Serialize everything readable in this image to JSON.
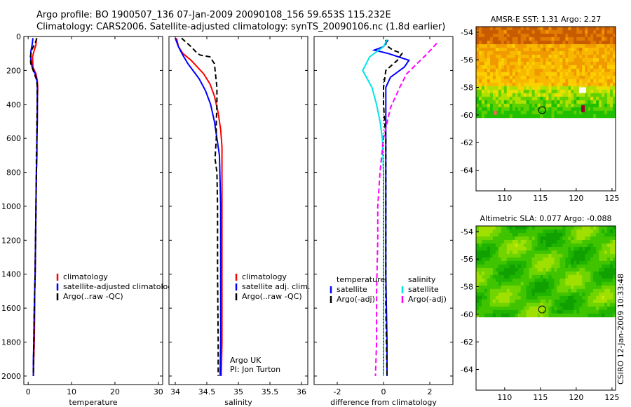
{
  "title_line1": "Argo profile: BO 1900507_136 07-Jan-2009 20090108_156 59.653S 115.232E",
  "title_line2": "Climatology: CARS2006. Satellite-adjusted climatology: synTS_20090106.nc (1.8d earlier)",
  "chart_data": [
    {
      "type": "line",
      "xlabel": "temperature",
      "ylabel": "",
      "xlim": [
        -1,
        31
      ],
      "ylim": [
        2050,
        0
      ],
      "xticks": [
        0,
        10,
        20,
        30
      ],
      "yticks": [
        0,
        200,
        400,
        600,
        800,
        1000,
        1200,
        1400,
        1600,
        1800,
        2000
      ],
      "legend": [
        {
          "label": "climatology",
          "color": "#ff0000"
        },
        {
          "label": "satellite-adjusted climatology",
          "color": "#0000ff"
        },
        {
          "label": "Argo(..raw -QC)",
          "color": "#000000"
        }
      ],
      "series": [
        {
          "key": "climatology",
          "color": "#ff0000",
          "style": "solid",
          "x": [
            1.9,
            1.8,
            1.4,
            1.0,
            1.1,
            1.8,
            2.1,
            2.2,
            2.1,
            2.1,
            2.0,
            2.0,
            1.9,
            1.8,
            1.7,
            1.6,
            1.5,
            1.5,
            1.4,
            1.3,
            1.2
          ],
          "y": [
            10,
            50,
            80,
            120,
            180,
            220,
            260,
            300,
            400,
            500,
            600,
            700,
            800,
            1000,
            1200,
            1400,
            1500,
            1600,
            1800,
            1900,
            2000
          ]
        },
        {
          "key": "satellite",
          "color": "#0000ff",
          "style": "solid",
          "x": [
            1.1,
            0.9,
            0.6,
            0.6,
            0.9,
            1.6,
            2.0,
            2.1,
            2.1,
            2.1,
            2.0,
            2.0,
            1.9,
            1.8,
            1.7,
            1.6,
            1.5,
            1.4,
            1.3,
            1.2,
            1.2
          ],
          "y": [
            10,
            50,
            90,
            130,
            180,
            220,
            260,
            300,
            400,
            500,
            600,
            700,
            800,
            1000,
            1200,
            1400,
            1500,
            1600,
            1800,
            1900,
            2000
          ]
        },
        {
          "key": "argo",
          "color": "#000000",
          "style": "dash",
          "x": [
            2.0,
            1.6,
            0.8,
            0.5,
            0.6,
            1.3,
            2.0,
            2.1,
            2.1,
            2.0,
            2.0,
            1.9,
            1.9,
            1.8,
            1.7,
            1.6,
            1.5,
            1.4,
            1.3,
            1.2
          ],
          "y": [
            10,
            40,
            80,
            120,
            160,
            210,
            260,
            300,
            400,
            500,
            600,
            700,
            800,
            1000,
            1200,
            1400,
            1500,
            1600,
            1800,
            2000
          ]
        }
      ]
    },
    {
      "type": "line",
      "xlabel": "salinity",
      "ylabel": "",
      "xlim": [
        33.9,
        36.1
      ],
      "ylim": [
        2050,
        0
      ],
      "xticks": [
        34,
        34.5,
        35,
        35.5,
        36
      ],
      "xticklabels": [
        "34",
        "34.5",
        "35",
        "35.5",
        "36"
      ],
      "legend": [
        {
          "label": "climatology",
          "color": "#ff0000"
        },
        {
          "label": "satellite adj. clim.",
          "color": "#0000ff"
        },
        {
          "label": "Argo(..raw -QC)",
          "color": "#000000"
        }
      ],
      "annotation": [
        "Argo UK",
        "PI: Jon Turton"
      ],
      "series": [
        {
          "key": "climatology",
          "color": "#ff0000",
          "style": "solid",
          "x": [
            34.02,
            34.05,
            34.12,
            34.25,
            34.35,
            34.45,
            34.55,
            34.62,
            34.68,
            34.72,
            34.74,
            34.74,
            34.74,
            34.74,
            34.74,
            34.73
          ],
          "y": [
            10,
            60,
            100,
            140,
            180,
            220,
            280,
            350,
            450,
            550,
            650,
            800,
            1000,
            1400,
            1800,
            2000
          ]
        },
        {
          "key": "satellite",
          "color": "#0000ff",
          "style": "solid",
          "x": [
            34.0,
            34.05,
            34.12,
            34.2,
            34.28,
            34.38,
            34.48,
            34.56,
            34.62,
            34.66,
            34.7,
            34.71,
            34.72,
            34.72,
            34.72,
            34.71
          ],
          "y": [
            10,
            60,
            110,
            160,
            200,
            250,
            320,
            400,
            500,
            600,
            700,
            850,
            1000,
            1400,
            1800,
            2000
          ]
        },
        {
          "key": "argo",
          "color": "#000000",
          "style": "dash",
          "x": [
            34.1,
            34.25,
            34.35,
            34.4,
            34.55,
            34.62,
            34.66,
            34.66,
            34.65,
            34.65,
            34.63,
            34.66,
            34.67,
            34.67,
            34.68,
            34.68
          ],
          "y": [
            10,
            60,
            100,
            110,
            120,
            160,
            300,
            400,
            500,
            600,
            720,
            800,
            1000,
            1400,
            1800,
            2000
          ]
        }
      ]
    },
    {
      "type": "line",
      "xlabel": "difference from climatology",
      "ylabel": "",
      "xlim": [
        -3.0,
        3.0
      ],
      "ylim": [
        2050,
        0
      ],
      "xticks": [
        -2,
        0,
        2
      ],
      "legend": [
        {
          "label": "temperature",
          "color": ""
        },
        {
          "label": "satellite",
          "color": "#0000ff"
        },
        {
          "label": "Argo(-adj)",
          "color": "#000000"
        },
        {
          "label": "salinity",
          "color": ""
        },
        {
          "label": "satellite",
          "color": "#00e5e5"
        },
        {
          "label": "Argo(-adj)",
          "color": "#ff00ff"
        }
      ],
      "series": [
        {
          "key": "temp_sat",
          "color": "#0000ff",
          "style": "solid",
          "x": [
            0.2,
            0.0,
            -0.4,
            0.2,
            1.1,
            0.9,
            0.3,
            0.1,
            0.1,
            0.1,
            0.1,
            0.1,
            0.15,
            0.15
          ],
          "y": [
            20,
            60,
            80,
            100,
            140,
            180,
            240,
            300,
            400,
            600,
            1000,
            1400,
            1800,
            2000
          ]
        },
        {
          "key": "temp_argo",
          "color": "#000000",
          "style": "dash",
          "x": [
            0.1,
            0.1,
            0.4,
            0.8,
            0.6,
            0.1,
            0.0,
            0.0,
            0.1,
            0.1,
            0.1,
            0.15
          ],
          "y": [
            20,
            50,
            80,
            100,
            140,
            200,
            300,
            400,
            600,
            1000,
            1600,
            2000
          ]
        },
        {
          "key": "sal_sat",
          "color": "#00e5e5",
          "style": "solid",
          "x": [
            0.15,
            0.0,
            -0.6,
            -0.9,
            -0.5,
            -0.3,
            -0.15,
            -0.05,
            0.0,
            0.0,
            0.0,
            0.0
          ],
          "y": [
            20,
            60,
            120,
            200,
            300,
            400,
            500,
            600,
            800,
            1000,
            1500,
            2000
          ]
        },
        {
          "key": "sal_argo",
          "color": "#ff00ff",
          "style": "dash",
          "x": [
            2.3,
            1.9,
            1.0,
            0.7,
            0.3,
            0.0,
            -0.15,
            -0.25,
            -0.25,
            -0.3,
            -0.3,
            -0.35
          ],
          "y": [
            40,
            100,
            220,
            300,
            420,
            600,
            800,
            1000,
            1200,
            1500,
            1800,
            2000
          ]
        },
        {
          "key": "zero",
          "color": "#000000",
          "style": "dot",
          "x": [
            0.0,
            0.0,
            0.0,
            0.0
          ],
          "y": [
            250,
            900,
            1500,
            2000
          ]
        }
      ]
    },
    {
      "type": "heatmap",
      "title": "AMSR-E SST: 1.31 Argo: 2.27",
      "xlim": [
        106,
        125.5
      ],
      "ylim": [
        -65.5,
        -53.6
      ],
      "xticks": [
        110,
        115,
        120,
        125
      ],
      "yticks": [
        -54,
        -56,
        -58,
        -60,
        -62,
        -64
      ],
      "data_lat_range": [
        -60.2,
        -53.6
      ],
      "marker": {
        "lon": 115.232,
        "lat": -59.653
      },
      "palette": [
        "#c85a00",
        "#e07a00",
        "#f09a00",
        "#f8b800",
        "#fcd000",
        "#e8e000",
        "#b0e000",
        "#60d000",
        "#20c000"
      ]
    },
    {
      "type": "heatmap",
      "title": "Altimetric SLA: 0.077 Argo: -0.088",
      "xlim": [
        106,
        125.5
      ],
      "ylim": [
        -65.5,
        -53.6
      ],
      "xticks": [
        110,
        115,
        120,
        125
      ],
      "yticks": [
        -54,
        -56,
        -58,
        -60,
        -62,
        -64
      ],
      "data_lat_range": [
        -60.2,
        -53.6
      ],
      "marker": {
        "lon": 115.232,
        "lat": -59.653
      },
      "palette": [
        "#10a000",
        "#20b400",
        "#40c400",
        "#70d400",
        "#a0e000",
        "#c8e800"
      ]
    }
  ],
  "side_label": "CSIRO 12-Jan-2009 10:33:48"
}
